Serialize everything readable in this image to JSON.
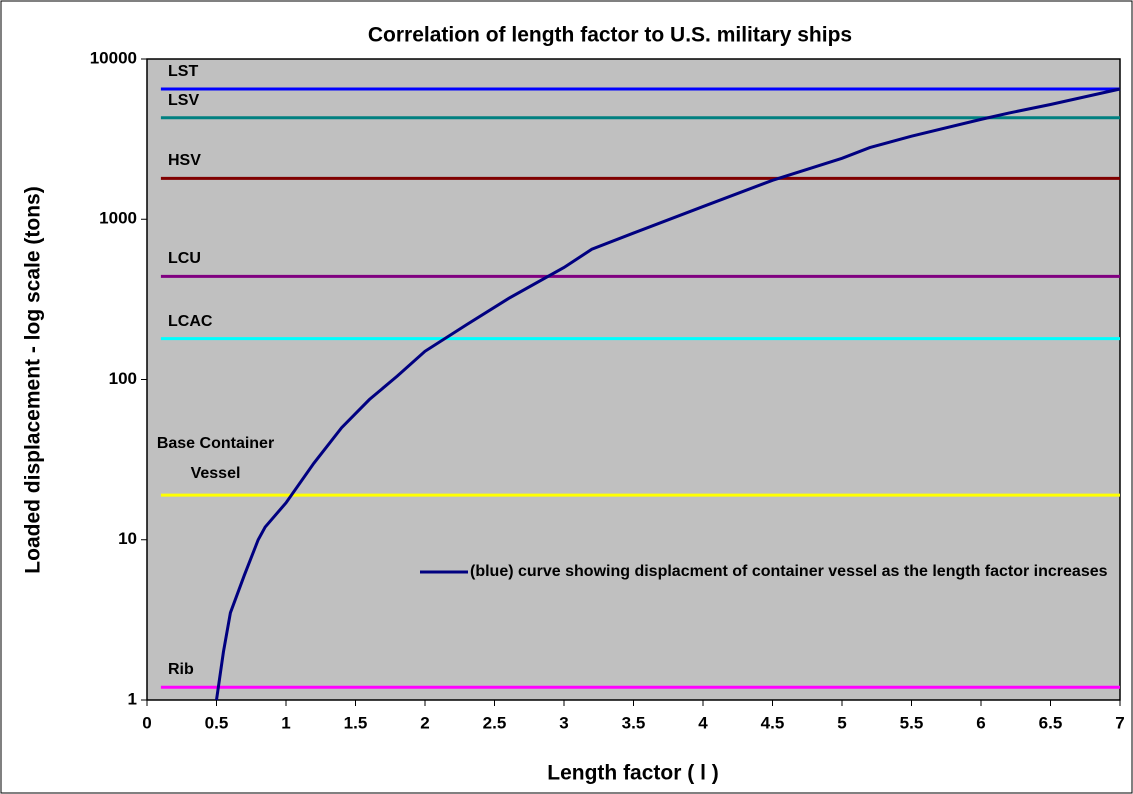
{
  "chart_data": {
    "type": "line",
    "title": "Correlation of length factor to U.S. military ships",
    "x_label": "Length factor ( l )",
    "y_label": "Loaded displacement - log scale (tons)",
    "log_y": true,
    "xlim": [
      0,
      7
    ],
    "xticks": [
      0,
      0.5,
      1,
      1.5,
      2,
      2.5,
      3,
      3.5,
      4,
      4.5,
      5,
      5.5,
      6,
      6.5,
      7
    ],
    "ylim": [
      1,
      10000
    ],
    "yticks": [
      1,
      10,
      100,
      1000,
      10000
    ],
    "background": "#c0c0c0",
    "series": [
      {
        "name": "LST",
        "color": "#0000ff",
        "x": [
          0.1,
          7
        ],
        "values": [
          6500,
          6500
        ]
      },
      {
        "name": "LSV",
        "color": "#008080",
        "x": [
          0.1,
          7
        ],
        "values": [
          4300,
          4300
        ]
      },
      {
        "name": "HSV",
        "color": "#800000",
        "x": [
          0.1,
          7
        ],
        "values": [
          1800,
          1800
        ]
      },
      {
        "name": "LCU",
        "color": "#800080",
        "x": [
          0.1,
          7
        ],
        "values": [
          440,
          440
        ]
      },
      {
        "name": "LCAC",
        "color": "#00ffff",
        "x": [
          0.1,
          7
        ],
        "values": [
          180,
          180
        ]
      },
      {
        "name": "Base Container Vessel",
        "color": "#ffff00",
        "x": [
          0.1,
          7
        ],
        "values": [
          19,
          19
        ]
      },
      {
        "name": "Rib",
        "color": "#ff00ff",
        "x": [
          0.1,
          7
        ],
        "values": [
          1.2,
          1.2
        ]
      },
      {
        "name": "(blue) curve showing displacment of container vessel as the length factor increases",
        "color": "#000080",
        "x": [
          0.5,
          0.55,
          0.6,
          0.7,
          0.8,
          0.85,
          1,
          1.2,
          1.4,
          1.6,
          1.8,
          2,
          2.3,
          2.6,
          3,
          3.2,
          3.5,
          4,
          4.5,
          5,
          5.2,
          5.5,
          6,
          6.2,
          6.5,
          7
        ],
        "values": [
          1,
          2,
          3.5,
          6,
          10,
          12,
          17,
          30,
          50,
          75,
          105,
          150,
          220,
          320,
          500,
          650,
          820,
          1200,
          1750,
          2400,
          2800,
          3300,
          4200,
          4600,
          5200,
          6500
        ]
      }
    ]
  }
}
